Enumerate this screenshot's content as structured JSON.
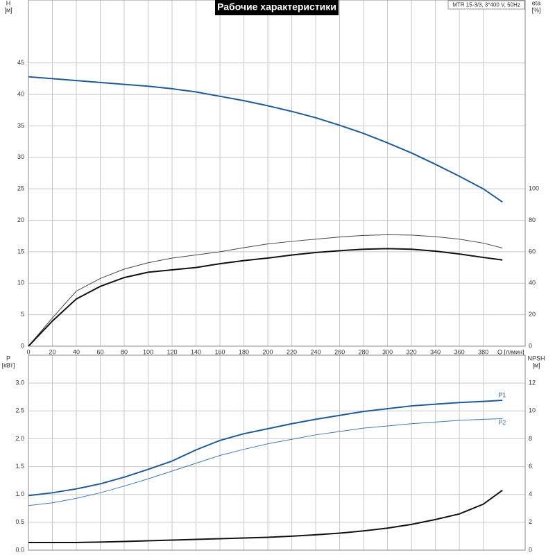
{
  "title": "Рабочие характеристики",
  "model": "MTR 15-3/3, 3*400 V, 50Hz",
  "chart_data": [
    {
      "type": "line",
      "xlabel": "Q [л/мин]",
      "ylabel": [
        "H",
        "[м]"
      ],
      "y2label": [
        "eta",
        "[%]"
      ],
      "x": [
        0,
        20,
        40,
        60,
        80,
        100,
        120,
        140,
        160,
        180,
        200,
        220,
        240,
        260,
        280,
        300,
        320,
        340,
        360,
        380,
        396
      ],
      "xlim": [
        0,
        415
      ],
      "xticks": [
        0,
        20,
        40,
        60,
        80,
        100,
        120,
        140,
        160,
        180,
        200,
        220,
        240,
        260,
        280,
        300,
        320,
        340,
        360,
        380
      ],
      "ylim": [
        0,
        55
      ],
      "yticks": [
        0,
        5,
        10,
        15,
        20,
        25,
        30,
        35,
        40,
        45
      ],
      "y2lim": [
        0,
        220
      ],
      "y2ticks": [
        0,
        20,
        40,
        60,
        80,
        100
      ],
      "grid": true,
      "series": [
        {
          "color": "#1f5a96",
          "width": 2,
          "values": [
            42.8,
            42.5,
            42.2,
            41.9,
            41.6,
            41.3,
            40.9,
            40.4,
            39.7,
            39.0,
            38.2,
            37.3,
            36.3,
            35.1,
            33.8,
            32.3,
            30.7,
            28.9,
            27.0,
            25.0,
            22.9
          ]
        },
        {
          "color": "#444444",
          "width": 1,
          "axis": "y2",
          "values": [
            0,
            18,
            35,
            43,
            49,
            53,
            56,
            58,
            60,
            62.6,
            65,
            66.6,
            68,
            69.4,
            70.4,
            70.8,
            70.6,
            69.6,
            68,
            65.5,
            62.4
          ]
        },
        {
          "color": "#111111",
          "width": 2,
          "axis": "y2",
          "values": [
            0,
            16,
            30,
            38,
            43.6,
            47,
            48.5,
            50,
            52.4,
            54.4,
            56,
            57.9,
            59.5,
            60.7,
            61.6,
            62,
            61.6,
            60.4,
            58.6,
            56.4,
            54.8
          ]
        }
      ]
    },
    {
      "type": "line",
      "ylabel": [
        "P",
        "[кВт]"
      ],
      "y2label": [
        "NPSH",
        "[м]"
      ],
      "x": [
        0,
        20,
        40,
        60,
        80,
        100,
        120,
        140,
        160,
        180,
        200,
        220,
        240,
        260,
        280,
        300,
        320,
        340,
        360,
        380,
        396
      ],
      "xlim": [
        0,
        415
      ],
      "xticks": [
        0,
        20,
        40,
        60,
        80,
        100,
        120,
        140,
        160,
        180,
        200,
        220,
        240,
        260,
        280,
        300,
        320,
        340,
        360,
        380
      ],
      "ylim": [
        0,
        3.5
      ],
      "yticks": [
        {
          "value": 0,
          "label": "0.0"
        },
        0.5,
        {
          "value": 1,
          "label": "1.0"
        },
        1.5,
        {
          "value": 2,
          "label": "2.0"
        },
        2.5,
        {
          "value": 3,
          "label": "3.0"
        }
      ],
      "y2lim": [
        0,
        14
      ],
      "y2ticks": [
        0,
        2,
        4,
        6,
        8,
        10,
        12
      ],
      "grid": true,
      "series": [
        {
          "name": "P1",
          "color": "#1f5a96",
          "width": 2,
          "values": [
            0.98,
            1.03,
            1.1,
            1.19,
            1.31,
            1.45,
            1.6,
            1.8,
            1.97,
            2.09,
            2.18,
            2.27,
            2.35,
            2.42,
            2.49,
            2.54,
            2.59,
            2.62,
            2.65,
            2.67,
            2.69
          ]
        },
        {
          "name": "P2",
          "color": "#3f78b4",
          "width": 1,
          "values": [
            0.8,
            0.85,
            0.93,
            1.03,
            1.15,
            1.28,
            1.42,
            1.56,
            1.7,
            1.81,
            1.91,
            1.99,
            2.07,
            2.13,
            2.19,
            2.23,
            2.27,
            2.3,
            2.33,
            2.35,
            2.36
          ]
        },
        {
          "color": "#111111",
          "width": 2,
          "axis": "y2",
          "values": [
            0.55,
            0.55,
            0.55,
            0.58,
            0.62,
            0.67,
            0.72,
            0.77,
            0.82,
            0.87,
            0.92,
            1.0,
            1.1,
            1.22,
            1.38,
            1.58,
            1.85,
            2.2,
            2.6,
            3.3,
            4.3
          ]
        }
      ]
    }
  ]
}
